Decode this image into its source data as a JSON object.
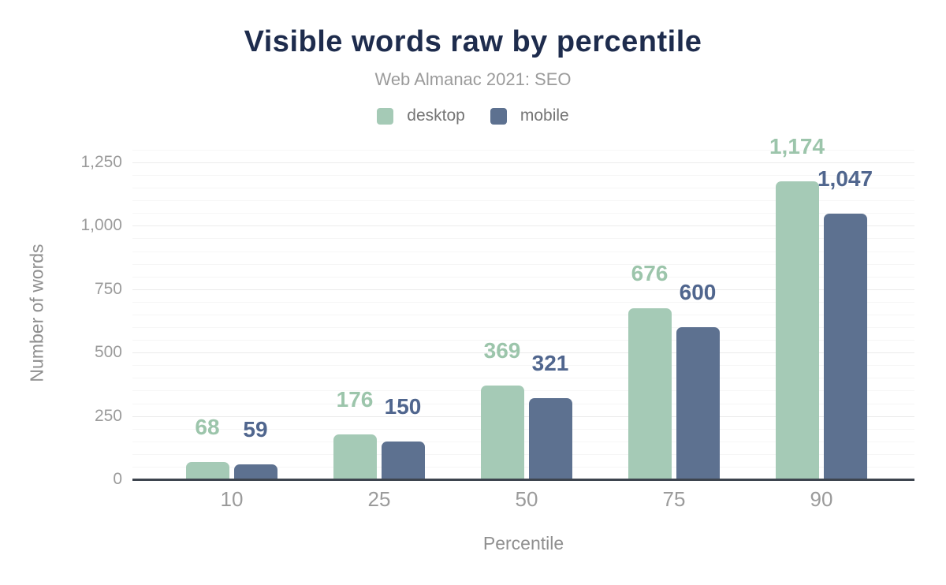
{
  "chart_data": {
    "type": "bar",
    "title": "Visible words raw by percentile",
    "subtitle": "Web Almanac 2021: SEO",
    "xlabel": "Percentile",
    "ylabel": "Number of words",
    "categories": [
      "10",
      "25",
      "50",
      "75",
      "90"
    ],
    "series": [
      {
        "name": "desktop",
        "color": "#a5cab6",
        "label_color": "#9cc5ab",
        "values": [
          68,
          176,
          369,
          676,
          1174
        ],
        "labels": [
          "68",
          "176",
          "369",
          "676",
          "1,174"
        ]
      },
      {
        "name": "mobile",
        "color": "#5d7190",
        "label_color": "#50668e",
        "values": [
          59,
          150,
          321,
          600,
          1047
        ],
        "labels": [
          "59",
          "150",
          "321",
          "600",
          "1,047"
        ]
      }
    ],
    "ylim": [
      0,
      1250
    ],
    "y_ticks": [
      {
        "value": 0,
        "label": "0"
      },
      {
        "value": 250,
        "label": "250"
      },
      {
        "value": 500,
        "label": "500"
      },
      {
        "value": 750,
        "label": "750"
      },
      {
        "value": 1000,
        "label": "1,000"
      },
      {
        "value": 1250,
        "label": "1,250"
      }
    ],
    "grid": {
      "on": true,
      "minor_step": 50,
      "major_step": 250,
      "grid_top_value": 1300
    },
    "legend_position": "top"
  },
  "colors": {
    "title": "#1e2c4d",
    "subtitle": "#9b9b9b",
    "tick_label": "#9b9b9b",
    "axis_title": "#8f8f8f",
    "axis_line": "#3d444e",
    "grid_minor": "#f6f6f6",
    "grid_major": "#ebebeb",
    "background": "#ffffff"
  }
}
